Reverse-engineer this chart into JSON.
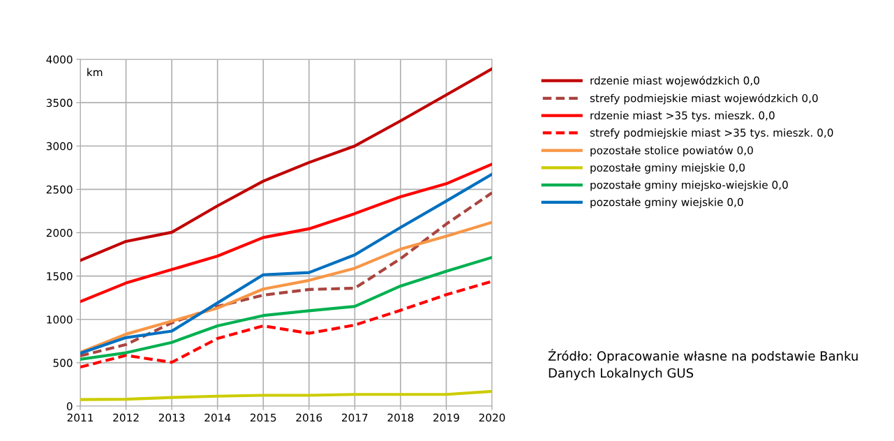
{
  "chart_data": {
    "type": "line",
    "x": [
      2011,
      2012,
      2013,
      2014,
      2015,
      2016,
      2017,
      2018,
      2019,
      2020
    ],
    "xlim": [
      2011,
      2020
    ],
    "xticks": [
      2011,
      2012,
      2013,
      2014,
      2015,
      2016,
      2017,
      2018,
      2019,
      2020
    ],
    "ylim": [
      0,
      4000
    ],
    "yticks": [
      0,
      500,
      1000,
      1500,
      2000,
      2500,
      3000,
      3500,
      4000
    ],
    "grid": true,
    "legend": "right",
    "marker": "none",
    "annotations": [
      "km",
      "Źródło: Opracowanie własne na podstawie Banku Danych Lokalnych GUS"
    ],
    "series": [
      {
        "name": "rdzenie miast wojewódzkich 0,0",
        "color": "#c00000",
        "line_style": "solid",
        "values": [
          1680,
          1900,
          2005,
          2310,
          2595,
          2810,
          3000,
          3290,
          3590,
          3890
        ]
      },
      {
        "name": "strefy podmiejskie miast wojewódzkich 0,0",
        "color": "#a9443f",
        "line_style": "dashed",
        "values": [
          580,
          710,
          960,
          1150,
          1280,
          1345,
          1360,
          1700,
          2100,
          2460
        ]
      },
      {
        "name": "rdzenie miast >35 tys. mieszk. 0,0",
        "color": "#ff0000",
        "line_style": "solid",
        "values": [
          1205,
          1420,
          1575,
          1730,
          1945,
          2045,
          2220,
          2415,
          2565,
          2790
        ]
      },
      {
        "name": "strefy podmiejskie miast >35 tys. mieszk. 0,0",
        "color": "#ff0000",
        "line_style": "dashed",
        "values": [
          450,
          585,
          505,
          780,
          925,
          840,
          935,
          1105,
          1285,
          1440
        ]
      },
      {
        "name": "pozostałe stolice powiatów 0,0",
        "color": "#f79646",
        "line_style": "solid",
        "values": [
          620,
          830,
          980,
          1130,
          1350,
          1450,
          1590,
          1810,
          1960,
          2120
        ]
      },
      {
        "name": "pozostałe gminy miejskie 0,0",
        "color": "#cccc00",
        "line_style": "solid",
        "values": [
          75,
          80,
          100,
          115,
          125,
          125,
          135,
          135,
          135,
          170
        ]
      },
      {
        "name": "pozostałe gminy miejsko-wiejskie 0,0",
        "color": "#00b050",
        "line_style": "solid",
        "values": [
          540,
          615,
          735,
          925,
          1045,
          1100,
          1150,
          1385,
          1555,
          1715
        ]
      },
      {
        "name": "pozostałe gminy wiejskie 0,0",
        "color": "#0070c0",
        "line_style": "solid",
        "values": [
          610,
          790,
          865,
          1190,
          1515,
          1540,
          1745,
          2060,
          2365,
          2675
        ]
      }
    ]
  }
}
